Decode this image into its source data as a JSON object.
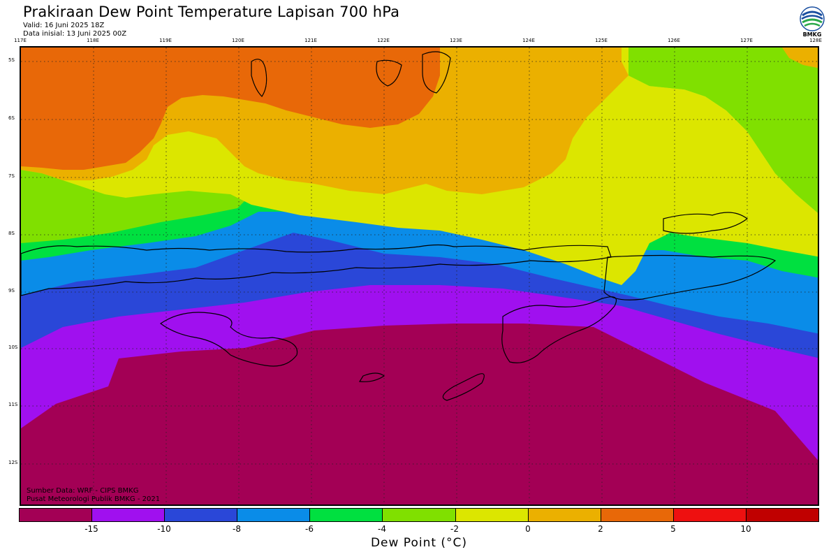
{
  "header": {
    "title": "Prakiraan Dew Point Temperature Lapisan 700 hPa",
    "valid": "Valid: 16 Juni 2025 18Z",
    "initial": "Data inisial: 13 Juni 2025 00Z"
  },
  "logo": {
    "text": "BMKG",
    "icon": "bmkg-logo"
  },
  "map": {
    "lon_labels": [
      "117E",
      "118E",
      "119E",
      "120E",
      "121E",
      "122E",
      "123E",
      "124E",
      "125E",
      "126E",
      "127E",
      "128E"
    ],
    "lat_labels": [
      "5S",
      "6S",
      "7S",
      "8S",
      "9S",
      "10S",
      "11S",
      "12S"
    ],
    "grid": true
  },
  "credits": {
    "source": "Sumber Data: WRF - CIPS BMKG",
    "org": "Pusat Meteorologi Publik BMKG - 2021"
  },
  "colorbar": {
    "title": "Dew Point (°C)",
    "colors": [
      "#a30055",
      "#a010ef",
      "#2a47d8",
      "#0a8ce8",
      "#00e040",
      "#80e000",
      "#dce600",
      "#ebb000",
      "#e86808",
      "#ee1010",
      "#c00000"
    ],
    "ticks": [
      "-15",
      "-10",
      "-8",
      "-6",
      "-4",
      "-2",
      "0",
      "2",
      "5",
      "10"
    ]
  }
}
